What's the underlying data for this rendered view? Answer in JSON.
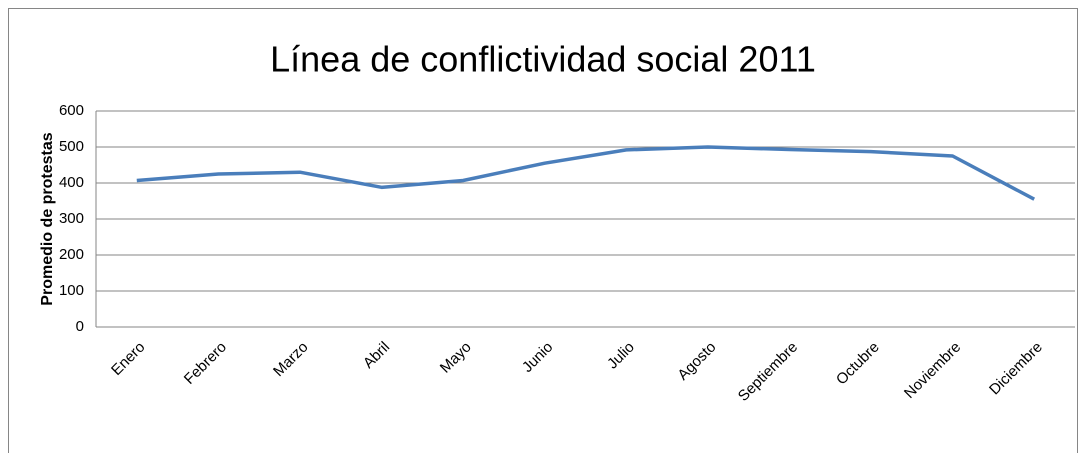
{
  "chart_data": {
    "type": "line",
    "title": "Línea de conflictividad social 2011",
    "y_label": "Promedio de protestas",
    "categories": [
      "Enero",
      "Febrero",
      "Marzo",
      "Abril",
      "Mayo",
      "Junio",
      "Julio",
      "Agosto",
      "Septiembre",
      "Octubre",
      "Noviembre",
      "Diciembre"
    ],
    "series": [
      {
        "name": "Promedio de protestas",
        "color": "#4a7ebb",
        "values": [
          407,
          425,
          430,
          388,
          407,
          455,
          492,
          500,
          493,
          487,
          475,
          355
        ]
      }
    ],
    "ylim": [
      0,
      600
    ],
    "yticks": [
      0,
      100,
      200,
      300,
      400,
      500,
      600
    ],
    "grid": true
  }
}
